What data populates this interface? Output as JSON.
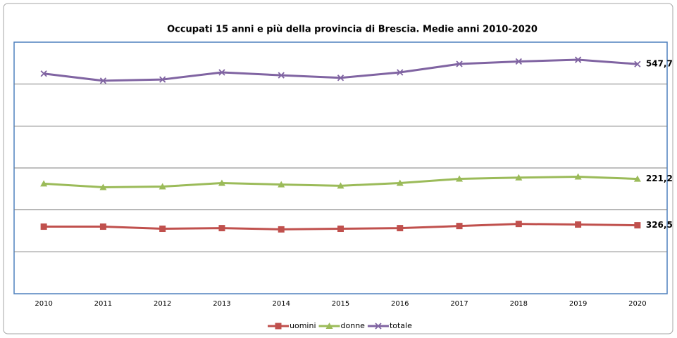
{
  "chart_data": {
    "type": "line",
    "stacked": true,
    "title": "Occupati 15 anni e più della provincia di Brescia. Medie anni 2010-2020",
    "categories": [
      "2010",
      "2011",
      "2012",
      "2013",
      "2014",
      "2015",
      "2016",
      "2017",
      "2018",
      "2019",
      "2020"
    ],
    "series": [
      {
        "name": "uomini",
        "color": "#c0504d",
        "marker": "square",
        "values": [
          320,
          320,
          310,
          313,
          307,
          310,
          313,
          323,
          333,
          330,
          326.5
        ],
        "value_labels": [
          null,
          null,
          null,
          null,
          null,
          null,
          null,
          null,
          null,
          null,
          "326,5"
        ]
      },
      {
        "name": "donne",
        "color": "#9bbb59",
        "marker": "triangle",
        "values": [
          205,
          188,
          201,
          215,
          214,
          205,
          215,
          225,
          221,
          228,
          221.2
        ],
        "value_labels": [
          null,
          null,
          null,
          null,
          null,
          null,
          null,
          null,
          null,
          null,
          "221,2"
        ]
      },
      {
        "name": "totale",
        "color": "#8064a2",
        "marker": "x",
        "values": [
          525,
          508,
          511,
          528,
          521,
          515,
          528,
          548,
          554,
          558,
          547.7
        ],
        "value_labels": [
          null,
          null,
          null,
          null,
          null,
          null,
          null,
          null,
          null,
          null,
          "547,7"
        ]
      }
    ],
    "ylim": [
      0,
      1200
    ],
    "yticks": [
      0,
      200,
      400,
      600,
      800,
      1000,
      1200
    ],
    "grid": true,
    "legend": "bottom"
  }
}
